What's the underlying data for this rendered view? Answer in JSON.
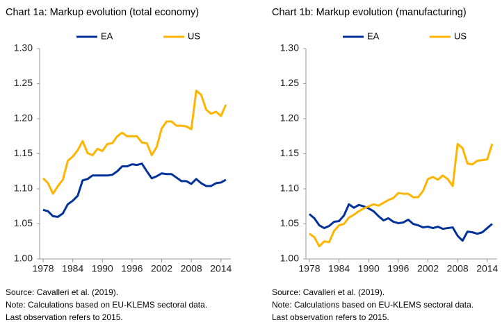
{
  "chart_data": [
    {
      "type": "line",
      "title": "Chart 1a: Markup evolution (total economy)",
      "x": [
        1978,
        1979,
        1980,
        1981,
        1982,
        1983,
        1984,
        1985,
        1986,
        1987,
        1988,
        1989,
        1990,
        1991,
        1992,
        1993,
        1994,
        1995,
        1996,
        1997,
        1998,
        1999,
        2000,
        2001,
        2002,
        2003,
        2004,
        2005,
        2006,
        2007,
        2008,
        2009,
        2010,
        2011,
        2012,
        2013,
        2014,
        2015
      ],
      "series": [
        {
          "name": "EA",
          "color": "#003299",
          "values": [
            1.07,
            1.068,
            1.061,
            1.06,
            1.065,
            1.078,
            1.083,
            1.09,
            1.112,
            1.114,
            1.119,
            1.119,
            1.119,
            1.119,
            1.12,
            1.125,
            1.132,
            1.132,
            1.135,
            1.134,
            1.136,
            1.125,
            1.115,
            1.118,
            1.122,
            1.121,
            1.121,
            1.116,
            1.111,
            1.111,
            1.107,
            1.114,
            1.108,
            1.104,
            1.104,
            1.108,
            1.109,
            1.113
          ]
        },
        {
          "name": "US",
          "color": "#ffb400",
          "values": [
            1.115,
            1.108,
            1.093,
            1.104,
            1.113,
            1.14,
            1.146,
            1.155,
            1.168,
            1.151,
            1.148,
            1.157,
            1.154,
            1.164,
            1.165,
            1.175,
            1.18,
            1.175,
            1.175,
            1.175,
            1.166,
            1.165,
            1.148,
            1.16,
            1.186,
            1.196,
            1.196,
            1.19,
            1.19,
            1.189,
            1.185,
            1.24,
            1.234,
            1.213,
            1.207,
            1.21,
            1.204,
            1.22
          ]
        }
      ],
      "xlim": [
        1977.3,
        2016.0
      ],
      "xticks": [
        1978,
        1984,
        1990,
        1996,
        2002,
        2008,
        2014
      ],
      "ylim": [
        1.0,
        1.3
      ],
      "yticks": [
        {
          "value": 1.0,
          "label": "1.00"
        },
        1.05,
        {
          "value": 1.1,
          "label": "1.10"
        },
        1.15,
        {
          "value": 1.2,
          "label": "1.20"
        },
        1.25,
        {
          "value": 1.3,
          "label": "1.30"
        }
      ],
      "notes": [
        "Source: Cavalleri et al. (2019).",
        "Note: Calculations based on EU-KLEMS sectoral data.",
        "Last observation refers to 2015."
      ]
    },
    {
      "type": "line",
      "title": "Chart 1b: Markup evolution (manufacturing)",
      "x": [
        1978,
        1979,
        1980,
        1981,
        1982,
        1983,
        1984,
        1985,
        1986,
        1987,
        1988,
        1989,
        1990,
        1991,
        1992,
        1993,
        1994,
        1995,
        1996,
        1997,
        1998,
        1999,
        2000,
        2001,
        2002,
        2003,
        2004,
        2005,
        2006,
        2007,
        2008,
        2009,
        2010,
        2011,
        2012,
        2013,
        2014,
        2015
      ],
      "series": [
        {
          "name": "EA",
          "color": "#003299",
          "values": [
            1.064,
            1.058,
            1.048,
            1.044,
            1.047,
            1.053,
            1.054,
            1.062,
            1.078,
            1.073,
            1.077,
            1.075,
            1.072,
            1.068,
            1.061,
            1.055,
            1.058,
            1.053,
            1.051,
            1.052,
            1.056,
            1.05,
            1.048,
            1.045,
            1.046,
            1.044,
            1.046,
            1.043,
            1.044,
            1.045,
            1.033,
            1.026,
            1.039,
            1.038,
            1.036,
            1.038,
            1.044,
            1.05
          ]
        },
        {
          "name": "US",
          "color": "#ffb400",
          "values": [
            1.036,
            1.031,
            1.018,
            1.025,
            1.024,
            1.04,
            1.048,
            1.05,
            1.059,
            1.063,
            1.068,
            1.072,
            1.075,
            1.078,
            1.076,
            1.08,
            1.084,
            1.087,
            1.094,
            1.093,
            1.093,
            1.088,
            1.088,
            1.097,
            1.114,
            1.117,
            1.113,
            1.119,
            1.114,
            1.104,
            1.164,
            1.158,
            1.136,
            1.135,
            1.14,
            1.141,
            1.142,
            1.164
          ]
        }
      ],
      "xlim": [
        1977.3,
        2016.0
      ],
      "xticks": [
        1978,
        1984,
        1990,
        1996,
        2002,
        2008,
        2014
      ],
      "ylim": [
        1.0,
        1.3
      ],
      "yticks": [
        {
          "value": 1.0,
          "label": "1.00"
        },
        1.05,
        {
          "value": 1.1,
          "label": "1.10"
        },
        1.15,
        {
          "value": 1.2,
          "label": "1.20"
        },
        1.25,
        {
          "value": 1.3,
          "label": "1.30"
        }
      ],
      "notes": [
        "Source: Cavalleri et al. (2019).",
        "Note: Calculations based on EU-KLEMS sectoral data.",
        "Last observation refers to 2015."
      ]
    }
  ]
}
